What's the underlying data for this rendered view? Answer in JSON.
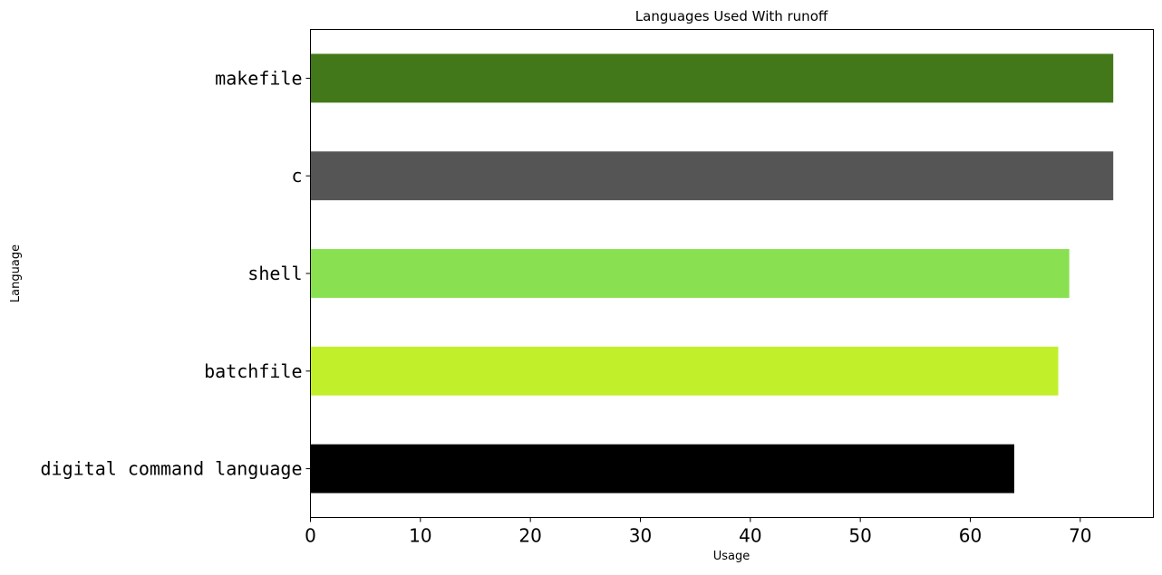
{
  "chart_data": {
    "type": "bar",
    "orientation": "horizontal",
    "title": "Languages Used With runoff",
    "xlabel": "Usage",
    "ylabel": "Language",
    "categories": [
      "digital command language",
      "batchfile",
      "shell",
      "c",
      "makefile"
    ],
    "values": [
      64,
      68,
      69,
      73,
      73
    ],
    "colors": [
      "#000000",
      "#c1f02b",
      "#89e051",
      "#555555",
      "#427819"
    ],
    "xlim": [
      0,
      76.65
    ],
    "xticks": [
      0,
      10,
      20,
      30,
      40,
      50,
      60,
      70
    ],
    "grid": false,
    "legend": "none"
  }
}
